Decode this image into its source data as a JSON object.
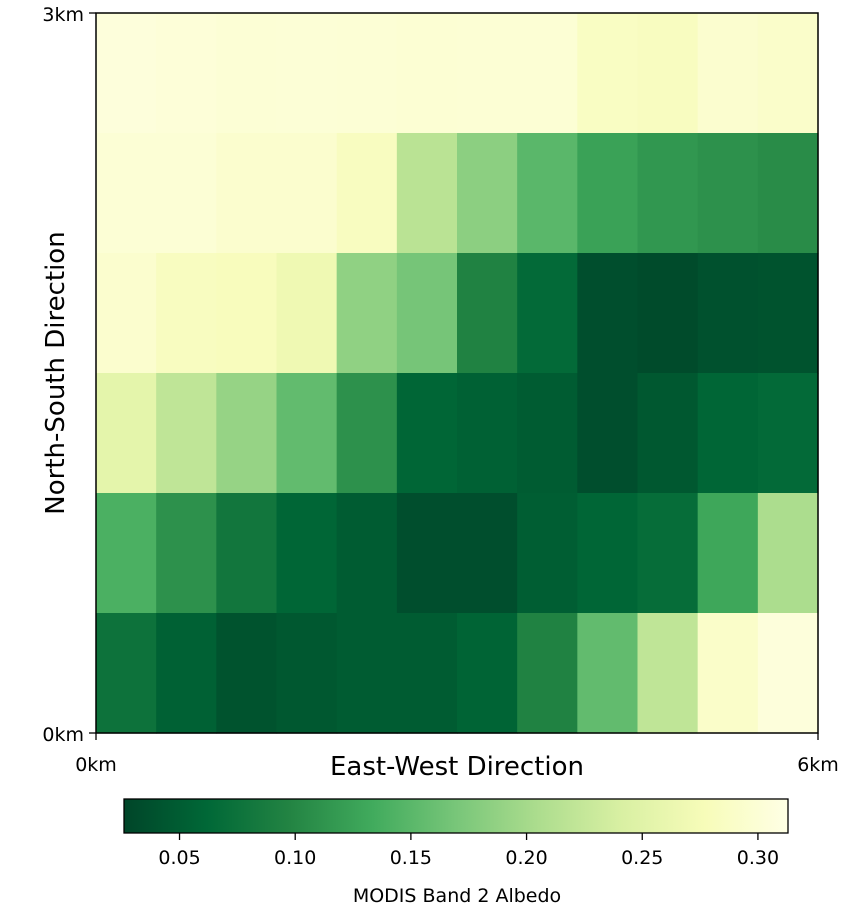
{
  "chart_data": {
    "type": "heatmap",
    "title": "",
    "xlabel": "East-West Direction",
    "ylabel": "North-South Direction",
    "x_ticks": [
      "0km",
      "6km"
    ],
    "y_ticks": [
      "0km",
      "3km"
    ],
    "x_extent_km": [
      0,
      6
    ],
    "y_extent_km": [
      0,
      3
    ],
    "colormap": "YlGn (reversed)",
    "grid": false,
    "colorbar": {
      "label": "MODIS Band 2 Albedo",
      "range": [
        0.026,
        0.313
      ],
      "ticks": [
        "0.05",
        "0.10",
        "0.15",
        "0.20",
        "0.25",
        "0.30"
      ],
      "tick_values": [
        0.05,
        0.1,
        0.15,
        0.2,
        0.25,
        0.3
      ],
      "placement": "bottom, horizontal"
    },
    "rows_top_to_bottom": [
      [
        0.305,
        0.302,
        0.3,
        0.301,
        0.3,
        0.298,
        0.299,
        0.299,
        0.285,
        0.283,
        0.295,
        0.291
      ],
      [
        0.3,
        0.3,
        0.294,
        0.294,
        0.283,
        0.216,
        0.183,
        0.15,
        0.125,
        0.115,
        0.11,
        0.105
      ],
      [
        0.294,
        0.283,
        0.28,
        0.268,
        0.186,
        0.168,
        0.095,
        0.065,
        0.035,
        0.032,
        0.038,
        0.04
      ],
      [
        0.255,
        0.22,
        0.19,
        0.155,
        0.11,
        0.06,
        0.055,
        0.05,
        0.035,
        0.045,
        0.06,
        0.065
      ],
      [
        0.14,
        0.11,
        0.08,
        0.06,
        0.05,
        0.035,
        0.035,
        0.052,
        0.06,
        0.068,
        0.13,
        0.205
      ],
      [
        0.075,
        0.055,
        0.04,
        0.045,
        0.05,
        0.05,
        0.058,
        0.095,
        0.155,
        0.22,
        0.29,
        0.305
      ]
    ]
  }
}
